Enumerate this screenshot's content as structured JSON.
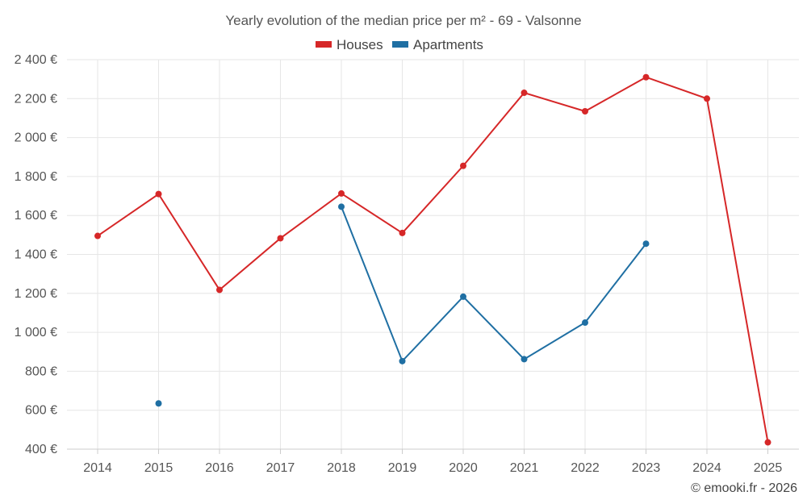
{
  "chart_data": {
    "type": "line",
    "title": "Yearly evolution of the median price per m² - 69 - Valsonne",
    "categories": [
      "2014",
      "2015",
      "2016",
      "2017",
      "2018",
      "2019",
      "2020",
      "2021",
      "2022",
      "2023",
      "2024",
      "2025"
    ],
    "ylim": [
      400,
      2400
    ],
    "yticks": [
      400,
      600,
      800,
      1000,
      1200,
      1400,
      1600,
      1800,
      2000,
      2200,
      2400
    ],
    "ytick_labels": [
      "400 €",
      "600 €",
      "800 €",
      "1 000 €",
      "1 200 €",
      "1 400 €",
      "1 600 €",
      "1 800 €",
      "2 000 €",
      "2 200 €",
      "2 400 €"
    ],
    "xlabel": "",
    "ylabel": "",
    "grid": true,
    "legend_position": "top-center",
    "series": [
      {
        "name": "Houses",
        "color": "#d62728",
        "values": [
          1495,
          1710,
          1218,
          1483,
          1713,
          1510,
          1855,
          2230,
          2135,
          2310,
          2200,
          435
        ]
      },
      {
        "name": "Apartments",
        "color": "#1f6fa3",
        "values": [
          null,
          635,
          null,
          null,
          1645,
          852,
          1183,
          862,
          1050,
          1455,
          null,
          null
        ]
      }
    ]
  },
  "credit": "© emooki.fr - 2026"
}
